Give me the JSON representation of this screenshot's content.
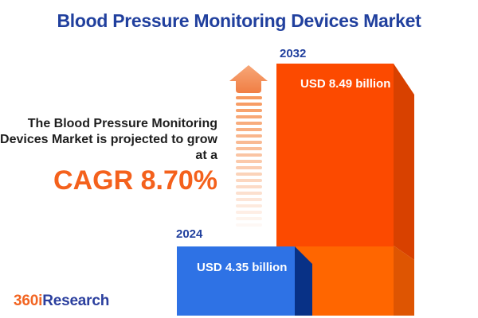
{
  "title": "Blood Pressure Monitoring Devices Market",
  "description": {
    "lines": [
      "The Blood Pressure Monitoring",
      "Devices Market is projected to grow",
      "at a"
    ],
    "cagr": "CAGR 8.70%"
  },
  "chart_data": {
    "type": "bar",
    "title": "Blood Pressure Monitoring Devices Market",
    "unit": "USD billion",
    "categories": [
      "2024",
      "2032"
    ],
    "values": [
      4.35,
      8.49
    ],
    "cagr_percent": 8.7,
    "annotation": "CAGR 8.70%",
    "legend": false,
    "bars": [
      {
        "year": "2024",
        "value": 4.35,
        "label": "USD 4.35 billion",
        "color": "#2E72E5"
      },
      {
        "year": "2032",
        "value": 8.49,
        "label": "USD 8.49 billion",
        "color": "#FC4A00"
      }
    ]
  },
  "logo": {
    "prefix": "360i",
    "suffix": "Research"
  },
  "colors": {
    "title_blue": "#21409E",
    "text_dark": "#1E1E1E",
    "accent_orange": "#F4611C",
    "blue_front": "#2E72E5",
    "blue_side": "#083186",
    "orange_front_top": "#FC4A00",
    "orange_front_bottom": "#FF6600",
    "orange_side_top": "#D84100",
    "orange_side_bottom": "#DE5502",
    "arrow_head_top": "#F7A778",
    "arrow_head_bottom": "#F07E44",
    "stripe": "#F69051",
    "logo_orange": "#F26522",
    "logo_blue": "#2B3F9E"
  }
}
